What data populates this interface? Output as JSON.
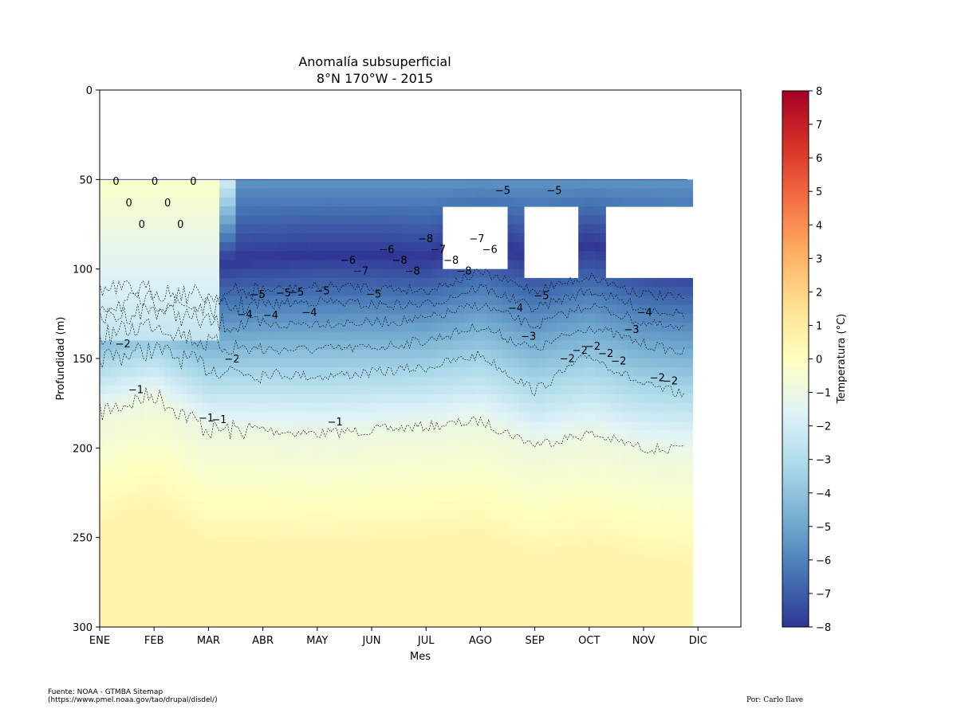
{
  "chart_data": {
    "type": "heatmap",
    "title": "Anomalía subsuperficial",
    "subtitle": "8°N 170°W - 2015",
    "xlabel": "Mes",
    "ylabel": "Profundidad (m)",
    "x_ticks": [
      "ENE",
      "FEB",
      "MAR",
      "ABR",
      "MAY",
      "JUN",
      "JUL",
      "AGO",
      "SEP",
      "OCT",
      "NOV",
      "DIC"
    ],
    "y_ticks": [
      "0",
      "50",
      "100",
      "150",
      "200",
      "250",
      "300"
    ],
    "ylim": [
      300,
      0
    ],
    "colorbar": {
      "label": "Temperatura (°C)",
      "range": [
        -8,
        8
      ],
      "ticks": [
        "8",
        "7",
        "6",
        "5",
        "4",
        "3",
        "2",
        "1",
        "0",
        "−1",
        "−2",
        "−3",
        "−4",
        "−5",
        "−6",
        "−7",
        "−8"
      ],
      "colormap": [
        "#313695",
        "#4575b4",
        "#74add1",
        "#abd9e9",
        "#e0f3f8",
        "#ffffbf",
        "#fee090",
        "#fdae61",
        "#f46d43",
        "#d73027",
        "#a50026"
      ]
    },
    "data_depth_range_m": [
      50,
      300
    ],
    "data_end_month_fraction": 10.8,
    "missing_regions": [
      {
        "months": [
          6.2,
          7.4
        ],
        "depth_m": [
          65,
          98
        ]
      },
      {
        "months": [
          7.7,
          8.7
        ],
        "depth_m": [
          65,
          105
        ]
      },
      {
        "months": [
          9.2,
          10.8
        ],
        "depth_m": [
          62,
          102
        ]
      }
    ],
    "isotherms": [
      {
        "value": -1,
        "depth_by_month": [
          180,
          170,
          190,
          190,
          192,
          190,
          188,
          185,
          198,
          192,
          200,
          202
        ]
      },
      {
        "value": -2,
        "depth_by_month": [
          150,
          145,
          155,
          158,
          160,
          158,
          155,
          148,
          168,
          148,
          165,
          172
        ]
      },
      {
        "value": -3,
        "depth_by_month": [
          138,
          130,
          142,
          145,
          145,
          144,
          140,
          132,
          145,
          132,
          142,
          148
        ]
      },
      {
        "value": -4,
        "depth_by_month": [
          128,
          122,
          130,
          132,
          130,
          130,
          128,
          120,
          132,
          120,
          130,
          136
        ]
      },
      {
        "value": -5,
        "depth_by_month": [
          120,
          118,
          122,
          120,
          118,
          120,
          120,
          110,
          122,
          112,
          122,
          126
        ]
      },
      {
        "value": -6,
        "depth_by_month": [
          112,
          112,
          115,
          112,
          110,
          110,
          112,
          102,
          112,
          104,
          114,
          118
        ]
      }
    ],
    "contour_labels": [
      "0",
      "0",
      "0",
      "0",
      "0",
      "0",
      "0",
      "−1",
      "−1",
      "−2",
      "−4",
      "−5",
      "−4",
      "−5",
      "−5",
      "−4",
      "−5",
      "−1",
      "−6",
      "−7",
      "−5",
      "−6",
      "−8",
      "−8",
      "−8",
      "−7",
      "−8",
      "−8",
      "−7",
      "−6",
      "−5",
      "−4",
      "−3",
      "−5",
      "−5",
      "−2",
      "−2",
      "−2",
      "−2",
      "−2",
      "−3",
      "−4",
      "−2",
      "−2",
      "−2",
      "−1"
    ]
  },
  "footer": {
    "source_line1": "Fuente: NOAA - GTMBA Sitemap",
    "source_line2": "(https://www.pmel.noaa.gov/tao/drupal/disdel/)",
    "author": "Por: Carlo Ilave"
  }
}
